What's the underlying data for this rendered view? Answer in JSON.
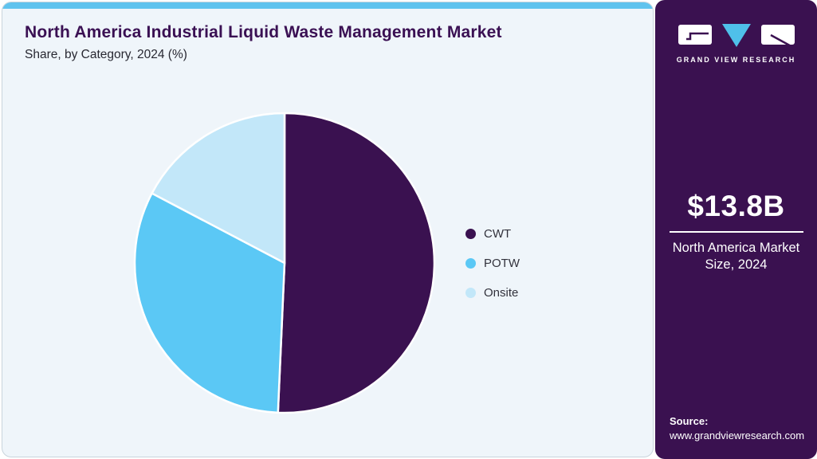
{
  "header": {
    "title": "North America Industrial Liquid Waste Management Market",
    "subtitle": "Share, by Category, 2024 (%)"
  },
  "chart_data": {
    "type": "pie",
    "title": "North America Industrial Liquid Waste Management Market Share, by Category, 2024 (%)",
    "categories": [
      "CWT",
      "POTW",
      "Onsite"
    ],
    "values": [
      50.7,
      32.0,
      17.3
    ],
    "colors": [
      "#3A1150",
      "#5BC8F5",
      "#C2E7F9"
    ],
    "start_angle_deg": 0,
    "direction": "clockwise",
    "legend_position": "right",
    "slice_border_color": "#FFFFFF"
  },
  "sidebar": {
    "logo": {
      "brand": "GRAND VIEW RESEARCH"
    },
    "market_size": {
      "value": "$13.8B",
      "label": "North America Market Size, 2024"
    },
    "source": {
      "label": "Source:",
      "url": "www.grandviewresearch.com"
    }
  },
  "colors": {
    "accent_stripe": "#60C3EE",
    "card_background": "#EFF5FA",
    "sidebar_background": "#3A1150",
    "title_text": "#3A1053",
    "logo_triangle": "#4FC0EA"
  }
}
